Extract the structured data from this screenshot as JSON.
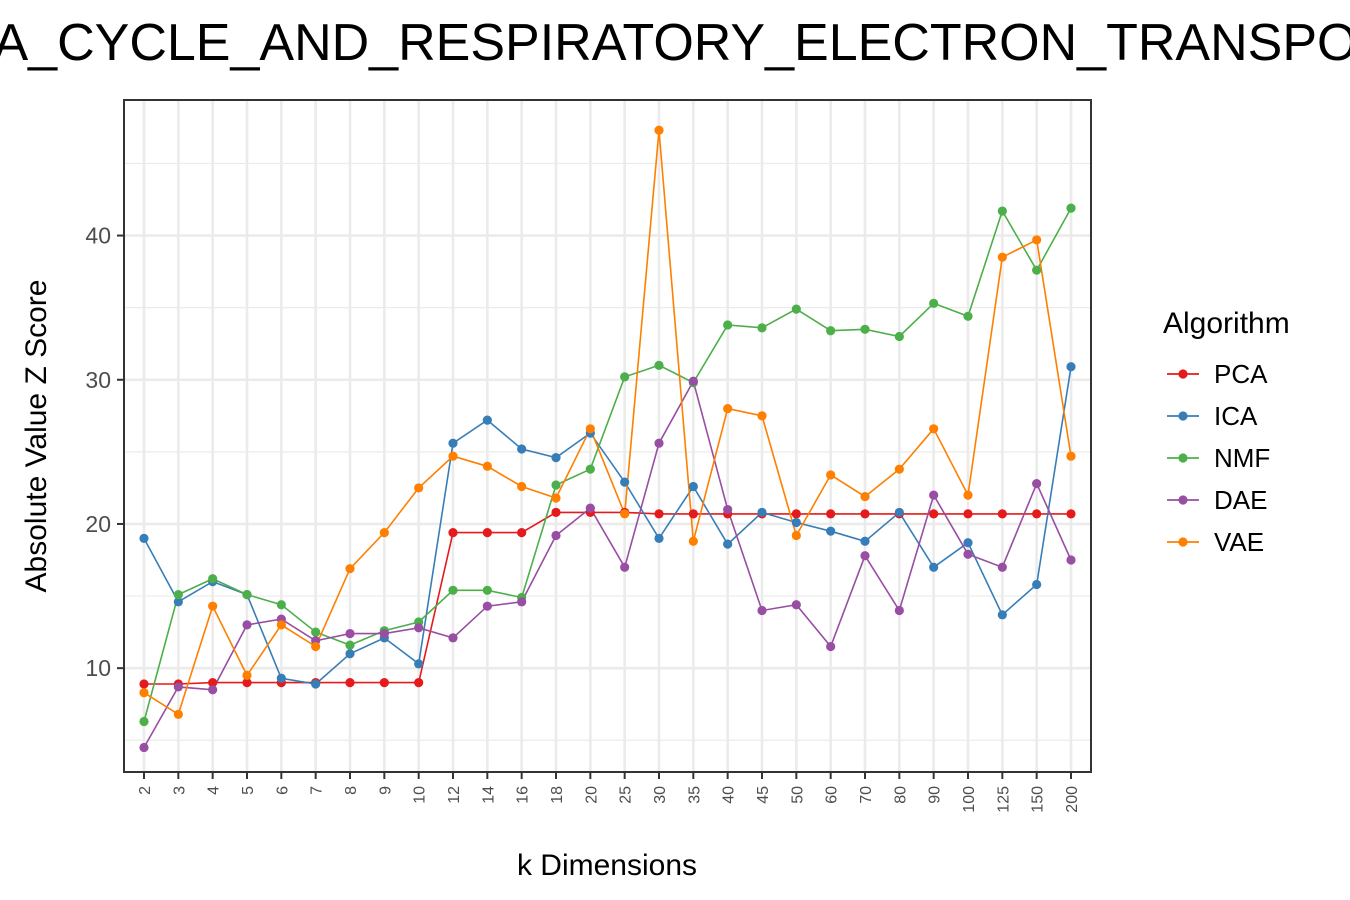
{
  "chart_data": {
    "type": "line",
    "title": "TCA_CYCLE_AND_RESPIRATORY_ELECTRON_TRANSPORT",
    "xlabel": "k Dimensions",
    "ylabel": "Absolute Value Z Score",
    "ylim": [
      2.8,
      49.4
    ],
    "yticks": [
      10,
      20,
      30,
      40
    ],
    "grid": true,
    "legend_title": "Algorithm",
    "legend_position": "right",
    "categories": [
      "2",
      "3",
      "4",
      "5",
      "6",
      "7",
      "8",
      "9",
      "10",
      "12",
      "14",
      "16",
      "18",
      "20",
      "25",
      "30",
      "35",
      "40",
      "45",
      "50",
      "60",
      "70",
      "80",
      "90",
      "100",
      "125",
      "150",
      "200"
    ],
    "series": [
      {
        "name": "PCA",
        "color": "#E41A1C",
        "values": [
          8.9,
          8.9,
          9.0,
          9.0,
          9.0,
          9.0,
          9.0,
          9.0,
          9.0,
          19.4,
          19.4,
          19.4,
          20.8,
          20.8,
          20.8,
          20.7,
          20.7,
          20.7,
          20.7,
          20.7,
          20.7,
          20.7,
          20.7,
          20.7,
          20.7,
          20.7,
          20.7,
          20.7
        ]
      },
      {
        "name": "ICA",
        "color": "#377EB8",
        "values": [
          19.0,
          14.6,
          16.0,
          15.1,
          9.3,
          8.9,
          11.0,
          12.1,
          10.3,
          25.6,
          27.2,
          25.2,
          24.6,
          26.3,
          22.9,
          19.0,
          22.6,
          18.6,
          20.8,
          20.1,
          19.5,
          18.8,
          20.8,
          17.0,
          18.7,
          13.7,
          15.8,
          30.9
        ]
      },
      {
        "name": "NMF",
        "color": "#4DAF4A",
        "values": [
          6.3,
          15.1,
          16.2,
          15.1,
          14.4,
          12.5,
          11.6,
          12.6,
          13.2,
          15.4,
          15.4,
          14.9,
          22.7,
          23.8,
          30.2,
          31.0,
          29.8,
          33.8,
          33.6,
          34.9,
          33.4,
          33.5,
          33.0,
          35.3,
          34.4,
          41.7,
          37.6,
          41.9
        ]
      },
      {
        "name": "DAE",
        "color": "#984EA3",
        "values": [
          4.5,
          8.7,
          8.5,
          13.0,
          13.4,
          11.9,
          12.4,
          12.4,
          12.8,
          12.1,
          14.3,
          14.6,
          19.2,
          21.1,
          17.0,
          25.6,
          29.9,
          21.0,
          14.0,
          14.4,
          11.5,
          17.8,
          14.0,
          22.0,
          17.9,
          17.0,
          22.8,
          17.5
        ]
      },
      {
        "name": "VAE",
        "color": "#FF7F00",
        "values": [
          8.3,
          6.8,
          14.3,
          9.5,
          13.0,
          11.5,
          16.9,
          19.4,
          22.5,
          24.7,
          24.0,
          22.6,
          21.8,
          26.6,
          20.7,
          47.3,
          18.8,
          28.0,
          27.5,
          19.2,
          23.4,
          21.9,
          23.8,
          26.6,
          22.0,
          38.5,
          39.7,
          24.7
        ]
      }
    ]
  }
}
